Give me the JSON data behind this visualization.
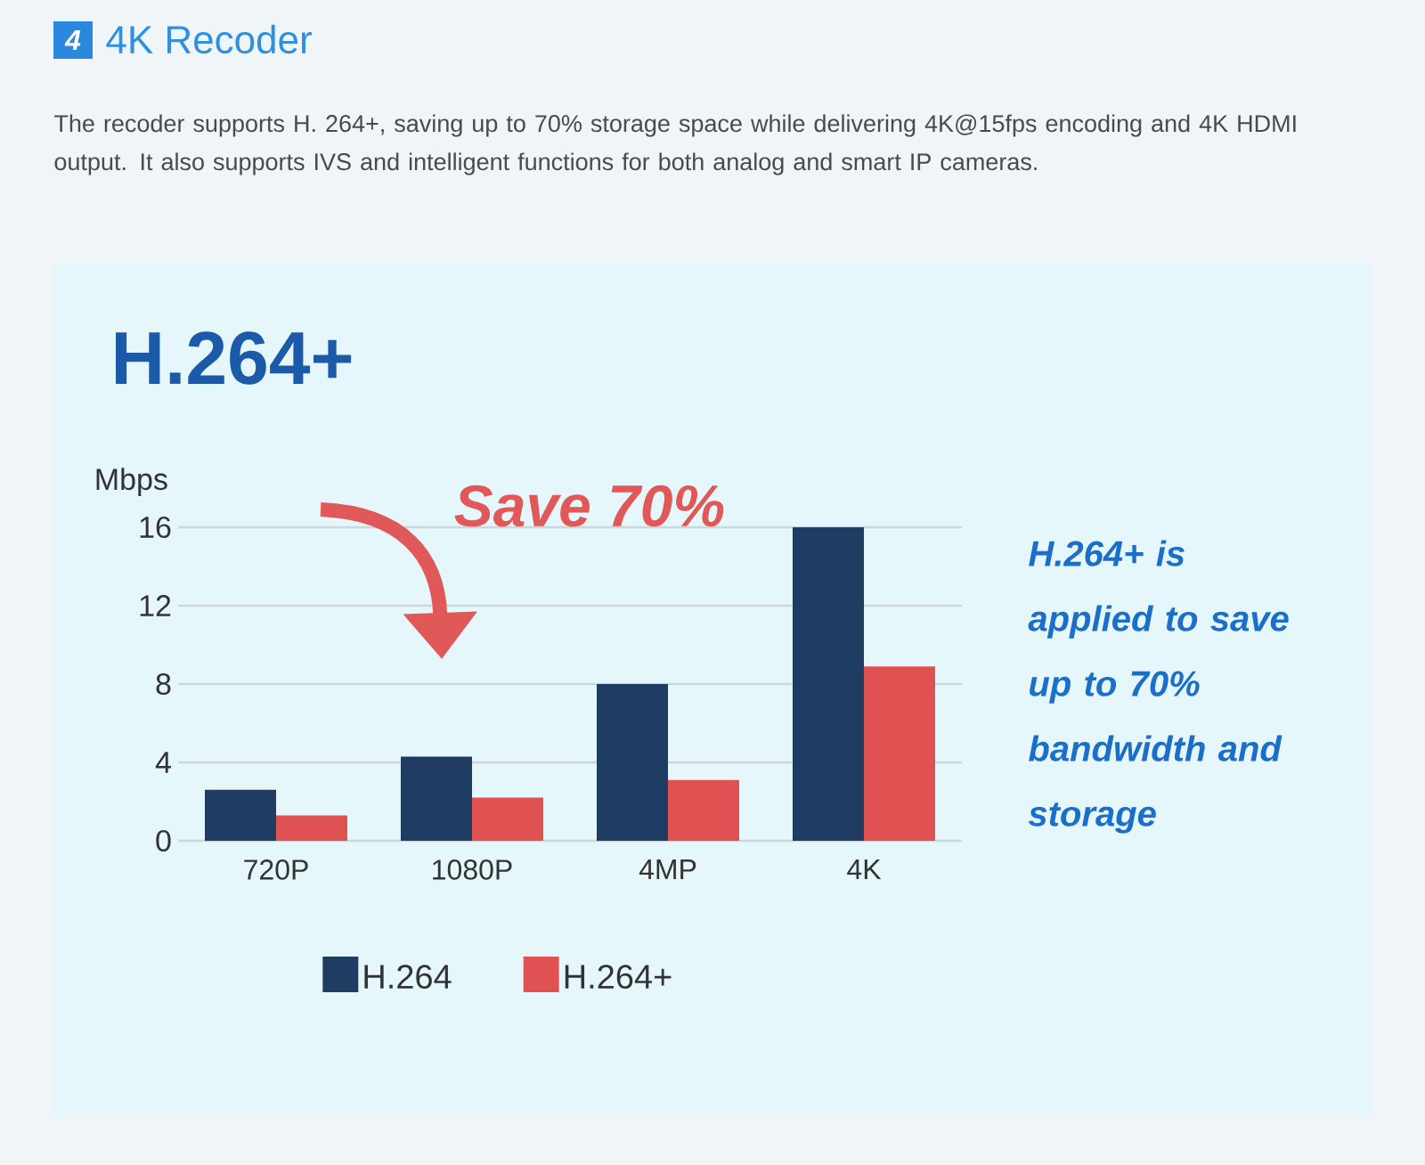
{
  "chart_data": {
    "type": "bar",
    "title": "H.264+",
    "ylabel": "Mbps",
    "categories": [
      "720P",
      "1080P",
      "4MP",
      "4K"
    ],
    "series": [
      {
        "name": "H.264",
        "color": "#1f3d63",
        "values": [
          2.6,
          4.3,
          8,
          16
        ]
      },
      {
        "name": "H.264+",
        "color": "#e05252",
        "values": [
          1.3,
          2.2,
          3.1,
          8.9
        ]
      }
    ],
    "ylim": [
      0,
      16
    ],
    "yticks": [
      0,
      4,
      8,
      12,
      16
    ],
    "grid": "y",
    "legend": "bottom",
    "annotations": [
      "4",
      "4K Recoder",
      "The recoder supports H. 264+, saving up to 70% storage space while delivering 4K@15fps encoding and 4K HDMI output. It also supports IVS and intelligent functions for both analog and smart IP cameras.",
      "Save 70%",
      "H.264+ is applied to save up to 70% bandwidth and storage"
    ]
  }
}
